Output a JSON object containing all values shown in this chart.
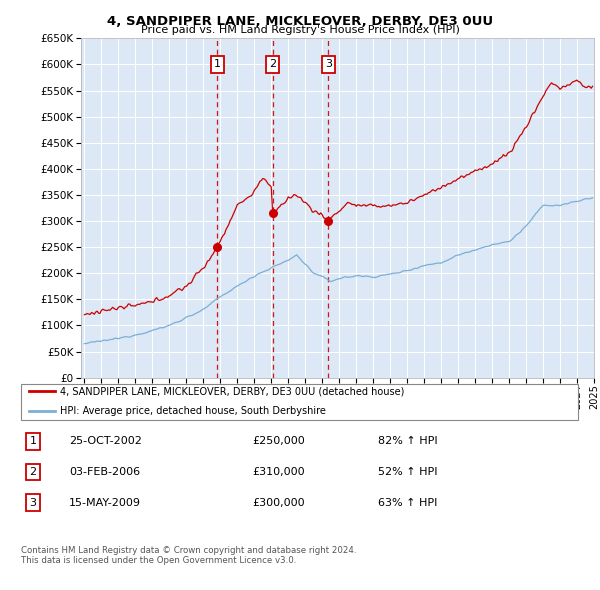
{
  "title": "4, SANDPIPER LANE, MICKLEOVER, DERBY, DE3 0UU",
  "subtitle": "Price paid vs. HM Land Registry's House Price Index (HPI)",
  "legend_line1": "4, SANDPIPER LANE, MICKLEOVER, DERBY, DE3 0UU (detached house)",
  "legend_line2": "HPI: Average price, detached house, South Derbyshire",
  "footnote1": "Contains HM Land Registry data © Crown copyright and database right 2024.",
  "footnote2": "This data is licensed under the Open Government Licence v3.0.",
  "purchases": [
    {
      "label": "1",
      "date": "25-OCT-2002",
      "price": "£250,000",
      "hpi_change": "82% ↑ HPI",
      "year": 2002.82
    },
    {
      "label": "2",
      "date": "03-FEB-2006",
      "price": "£310,000",
      "hpi_change": "52% ↑ HPI",
      "year": 2006.09
    },
    {
      "label": "3",
      "date": "15-MAY-2009",
      "price": "£300,000",
      "hpi_change": "63% ↑ HPI",
      "year": 2009.37
    }
  ],
  "hpi_color": "#7bafd4",
  "price_color": "#cc0000",
  "background_color": "#ddeeff",
  "plot_bg": "#dce8f5",
  "ylim": [
    0,
    650000
  ],
  "yticks": [
    0,
    50000,
    100000,
    150000,
    200000,
    250000,
    300000,
    350000,
    400000,
    450000,
    500000,
    550000,
    600000,
    650000
  ],
  "year_start": 1995,
  "year_end": 2025
}
